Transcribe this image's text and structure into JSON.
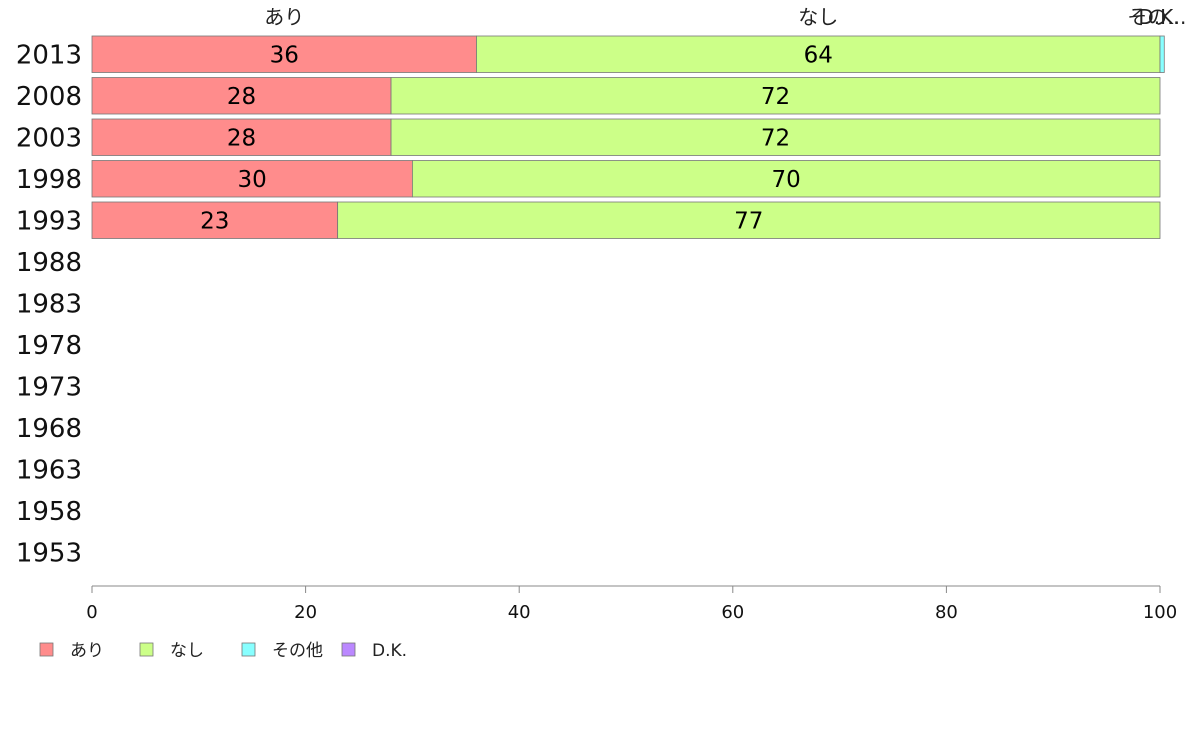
{
  "chart_data": {
    "type": "bar",
    "orientation": "horizontal",
    "stacked": true,
    "categories": [
      "2013",
      "2008",
      "2003",
      "1998",
      "1993",
      "1988",
      "1983",
      "1978",
      "1973",
      "1968",
      "1963",
      "1958",
      "1953"
    ],
    "series": [
      {
        "name": "あり",
        "color": "#ff8c8c",
        "values": [
          36,
          28,
          28,
          30,
          23,
          null,
          null,
          null,
          null,
          null,
          null,
          null,
          null
        ],
        "labels": [
          "36",
          "28",
          "28",
          "30",
          "23",
          "",
          "",
          "",
          "",
          "",
          "",
          "",
          ""
        ]
      },
      {
        "name": "なし",
        "color": "#ccff88",
        "values": [
          64,
          72,
          72,
          70,
          77,
          null,
          null,
          null,
          null,
          null,
          null,
          null,
          null
        ],
        "labels": [
          "64",
          "72",
          "72",
          "70",
          "77",
          "",
          "",
          "",
          "",
          "",
          "",
          "",
          ""
        ]
      },
      {
        "name": "その他",
        "color": "#88ffff",
        "values": [
          0.4,
          0,
          0,
          0,
          0,
          null,
          null,
          null,
          null,
          null,
          null,
          null,
          null
        ],
        "labels": [
          "",
          "",
          "",
          "",
          "",
          "",
          "",
          "",
          "",
          "",
          "",
          "",
          ""
        ]
      },
      {
        "name": "D.K.",
        "color": "#bb88ff",
        "values": [
          0,
          0,
          0,
          0,
          0,
          null,
          null,
          null,
          null,
          null,
          null,
          null,
          null
        ],
        "labels": [
          "",
          "",
          "",
          "",
          "",
          "",
          "",
          "",
          "",
          "",
          "",
          "",
          ""
        ]
      }
    ],
    "top_labels": [
      {
        "text": "あり",
        "x": 18
      },
      {
        "text": "なし",
        "x": 68
      },
      {
        "text": "その...",
        "x": 99.7
      },
      {
        "text": "D.K.",
        "x": 99.9
      }
    ],
    "xlim": [
      0,
      100
    ],
    "xticks": [
      0,
      20,
      40,
      60,
      80,
      100
    ],
    "grid": false,
    "legend": {
      "position": "bottom-left",
      "items": [
        "あり",
        "なし",
        "その他",
        "D.K."
      ]
    }
  }
}
